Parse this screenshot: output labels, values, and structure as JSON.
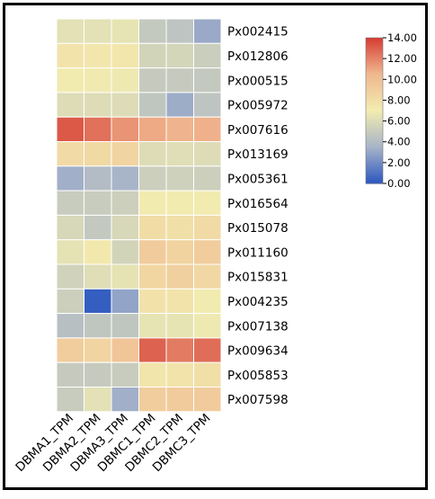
{
  "chart_data": {
    "type": "heatmap",
    "title": "",
    "xlabel": "",
    "ylabel": "",
    "columns": [
      "DBMA1_TPM",
      "DBMA2_TPM",
      "DBMA3_TPM",
      "DBMC1_TPM",
      "DBMC2_TPM",
      "DBMC3_TPM"
    ],
    "rows": [
      "Px002415",
      "Px012806",
      "Px000515",
      "Px005972",
      "Px007616",
      "Px013169",
      "Px005361",
      "Px016564",
      "Px015078",
      "Px011160",
      "Px015831",
      "Px004235",
      "Px007138",
      "Px009634",
      "Px005853",
      "Px007598"
    ],
    "values": [
      [
        6.3,
        6.3,
        6.5,
        4.8,
        4.5,
        3.1
      ],
      [
        7.6,
        7.4,
        7.4,
        5.5,
        5.6,
        5.1
      ],
      [
        7.1,
        6.9,
        6.8,
        4.9,
        4.9,
        4.8
      ],
      [
        6.0,
        6.0,
        6.0,
        4.6,
        3.2,
        4.5
      ],
      [
        13.2,
        12.5,
        11.5,
        10.9,
        10.6,
        10.7
      ],
      [
        8.2,
        8.3,
        8.6,
        6.0,
        6.1,
        6.0
      ],
      [
        3.3,
        4.0,
        3.5,
        5.2,
        5.3,
        5.2
      ],
      [
        5.0,
        5.0,
        5.2,
        7.1,
        7.1,
        7.1
      ],
      [
        5.7,
        4.8,
        5.7,
        8.1,
        7.9,
        8.2
      ],
      [
        6.4,
        7.3,
        5.5,
        9.2,
        8.7,
        9.1
      ],
      [
        5.4,
        6.1,
        6.4,
        8.5,
        8.9,
        8.4
      ],
      [
        5.2,
        0.3,
        2.9,
        7.7,
        7.6,
        7.1
      ],
      [
        4.2,
        4.6,
        4.6,
        6.5,
        6.5,
        6.8
      ],
      [
        9.1,
        8.6,
        9.6,
        12.9,
        12.2,
        12.6
      ],
      [
        4.9,
        4.9,
        5.0,
        7.5,
        7.6,
        7.9
      ],
      [
        5.0,
        6.3,
        3.3,
        9.1,
        9.2,
        9.2
      ]
    ],
    "colorbar": {
      "min": 0,
      "max": 14,
      "ticks": [
        "0.00",
        "2.00",
        "4.00",
        "6.00",
        "8.00",
        "10.00",
        "12.00",
        "14.00"
      ],
      "colors": [
        "#2a56c0",
        "#a8b4c8",
        "#f2ecb0",
        "#f0b890",
        "#d63b32"
      ]
    },
    "legend_position": "top-right",
    "grid": false
  }
}
